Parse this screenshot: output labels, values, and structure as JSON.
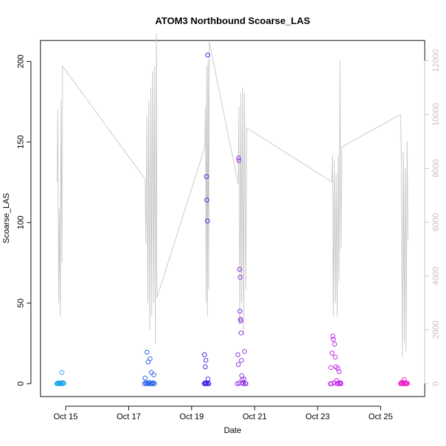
{
  "chart_data": {
    "type": "scatter",
    "title": "ATOM3 Northbound Scoarse_LAS",
    "xlabel": "Date",
    "ylabel": "Scoarse_LAS",
    "x_ticks": [
      "Oct 15",
      "Oct 17",
      "Oct 19",
      "Oct 21",
      "Oct 23",
      "Oct 25"
    ],
    "x_tick_days": [
      15,
      17,
      19,
      21,
      23,
      25
    ],
    "xlim_days": [
      14.2,
      26.4
    ],
    "ylim": [
      -8,
      213
    ],
    "y_ticks": [
      0,
      50,
      100,
      150,
      200
    ],
    "y2_lim": [
      -480,
      12750
    ],
    "y2_ticks": [
      0,
      2000,
      4000,
      6000,
      8000,
      10000,
      12000
    ],
    "axis_colors": {
      "left": "#000000",
      "right": "#c0c0c0",
      "line": "#c8c8c8"
    },
    "secondary_series_note": "light gray line on right axis",
    "secondary_line": {
      "axis": "right",
      "points": [
        [
          14.73,
          7500
        ],
        [
          14.75,
          10200
        ],
        [
          14.78,
          3000
        ],
        [
          14.8,
          6500
        ],
        [
          14.83,
          2500
        ],
        [
          14.85,
          10500
        ],
        [
          14.88,
          4500
        ],
        [
          14.9,
          11800
        ],
        [
          17.52,
          7600
        ],
        [
          17.55,
          5200
        ],
        [
          17.58,
          10000
        ],
        [
          17.61,
          3000
        ],
        [
          17.64,
          10500
        ],
        [
          17.67,
          2000
        ],
        [
          17.7,
          11000
        ],
        [
          17.73,
          2500
        ],
        [
          17.76,
          11600
        ],
        [
          17.79,
          3000
        ],
        [
          17.82,
          11800
        ],
        [
          17.85,
          1500
        ],
        [
          17.88,
          13000
        ],
        [
          17.9,
          3200
        ],
        [
          19.42,
          8800
        ],
        [
          19.44,
          10300
        ],
        [
          19.46,
          3000
        ],
        [
          19.48,
          11800
        ],
        [
          19.5,
          2500
        ],
        [
          19.52,
          12000
        ],
        [
          19.54,
          3500
        ],
        [
          19.56,
          12700
        ],
        [
          20.48,
          7400
        ],
        [
          20.5,
          10300
        ],
        [
          20.53,
          2200
        ],
        [
          20.56,
          10800
        ],
        [
          20.59,
          3000
        ],
        [
          20.62,
          11000
        ],
        [
          20.65,
          1800
        ],
        [
          20.68,
          10800
        ],
        [
          20.72,
          3500
        ],
        [
          20.75,
          9500
        ],
        [
          23.45,
          7500
        ],
        [
          23.47,
          8500
        ],
        [
          23.5,
          2500
        ],
        [
          23.53,
          8300
        ],
        [
          23.56,
          3000
        ],
        [
          23.59,
          7800
        ],
        [
          23.62,
          2500
        ],
        [
          23.65,
          8500
        ],
        [
          23.68,
          3800
        ],
        [
          23.71,
          12000
        ],
        [
          23.74,
          5000
        ],
        [
          23.77,
          8800
        ],
        [
          25.63,
          10000
        ],
        [
          25.66,
          8500
        ],
        [
          25.69,
          1000
        ],
        [
          25.72,
          8600
        ],
        [
          25.75,
          1500
        ],
        [
          25.78,
          8000
        ],
        [
          25.81,
          1200
        ],
        [
          25.84,
          9000
        ],
        [
          25.87,
          5300
        ]
      ]
    },
    "series": [
      {
        "name": "",
        "color": "#1ca3ec",
        "points": [
          [
            14.72,
            0
          ],
          [
            14.74,
            0.3
          ],
          [
            14.76,
            0
          ],
          [
            14.78,
            0.5
          ],
          [
            14.8,
            0
          ],
          [
            14.82,
            0.2
          ],
          [
            14.84,
            0
          ],
          [
            14.86,
            0.4
          ],
          [
            14.88,
            7
          ],
          [
            14.9,
            0.6
          ],
          [
            14.92,
            0
          ],
          [
            14.94,
            0.3
          ]
        ]
      },
      {
        "name": "",
        "color": "#1f5ee8",
        "points": [
          [
            17.5,
            0
          ],
          [
            17.52,
            3.5
          ],
          [
            17.54,
            0.5
          ],
          [
            17.56,
            0
          ],
          [
            17.58,
            19.5
          ],
          [
            17.6,
            0.4
          ],
          [
            17.62,
            13.5
          ],
          [
            17.64,
            0
          ],
          [
            17.66,
            0.8
          ],
          [
            17.68,
            15.5
          ],
          [
            17.7,
            0
          ],
          [
            17.72,
            7
          ],
          [
            17.74,
            0.3
          ],
          [
            17.76,
            0
          ],
          [
            17.78,
            0.5
          ],
          [
            17.8,
            5.5
          ],
          [
            17.82,
            0
          ]
        ]
      },
      {
        "name": "",
        "color": "#3b1fe8",
        "points": [
          [
            19.4,
            0
          ],
          [
            19.41,
            18
          ],
          [
            19.42,
            0.5
          ],
          [
            19.43,
            10.5
          ],
          [
            19.44,
            0
          ],
          [
            19.45,
            14.5
          ],
          [
            19.46,
            0.3
          ],
          [
            19.47,
            128.5
          ],
          [
            19.48,
            114
          ],
          [
            19.49,
            0
          ],
          [
            19.5,
            101
          ],
          [
            19.51,
            204
          ],
          [
            19.52,
            3
          ],
          [
            19.53,
            0.4
          ],
          [
            19.54,
            0
          ]
        ]
      },
      {
        "name": "",
        "color": "#8a2be2",
        "points": [
          [
            20.45,
            0
          ],
          [
            20.47,
            18
          ],
          [
            20.48,
            12
          ],
          [
            20.49,
            140
          ],
          [
            20.5,
            138.5
          ],
          [
            20.51,
            0.3
          ],
          [
            20.52,
            71
          ],
          [
            20.53,
            45
          ],
          [
            20.54,
            66
          ],
          [
            20.55,
            40
          ],
          [
            20.56,
            39
          ],
          [
            20.57,
            31.5
          ],
          [
            20.58,
            14.5
          ],
          [
            20.59,
            5
          ],
          [
            20.6,
            2.5
          ],
          [
            20.62,
            0.5
          ],
          [
            20.64,
            0
          ],
          [
            20.66,
            3
          ],
          [
            20.68,
            20
          ],
          [
            20.7,
            0.2
          ],
          [
            20.72,
            0
          ]
        ]
      },
      {
        "name": "",
        "color": "#c020e8",
        "points": [
          [
            23.4,
            0
          ],
          [
            23.42,
            10
          ],
          [
            23.44,
            0
          ],
          [
            23.46,
            19
          ],
          [
            23.48,
            29.5
          ],
          [
            23.5,
            27.5
          ],
          [
            23.52,
            0.5
          ],
          [
            23.54,
            24.5
          ],
          [
            23.56,
            16.5
          ],
          [
            23.58,
            10.5
          ],
          [
            23.6,
            2
          ],
          [
            23.62,
            0
          ],
          [
            23.64,
            9.5
          ],
          [
            23.66,
            0.3
          ],
          [
            23.68,
            7.5
          ],
          [
            23.7,
            0
          ],
          [
            23.72,
            0.6
          ],
          [
            23.74,
            0
          ]
        ]
      },
      {
        "name": "",
        "color": "#f01ec8",
        "points": [
          [
            25.63,
            0
          ],
          [
            25.65,
            0.5
          ],
          [
            25.67,
            0
          ],
          [
            25.69,
            1
          ],
          [
            25.71,
            0.3
          ],
          [
            25.73,
            0
          ],
          [
            25.75,
            2.5
          ],
          [
            25.77,
            0.5
          ],
          [
            25.79,
            0
          ],
          [
            25.81,
            0.4
          ],
          [
            25.83,
            0
          ],
          [
            25.85,
            0.2
          ]
        ]
      }
    ]
  }
}
